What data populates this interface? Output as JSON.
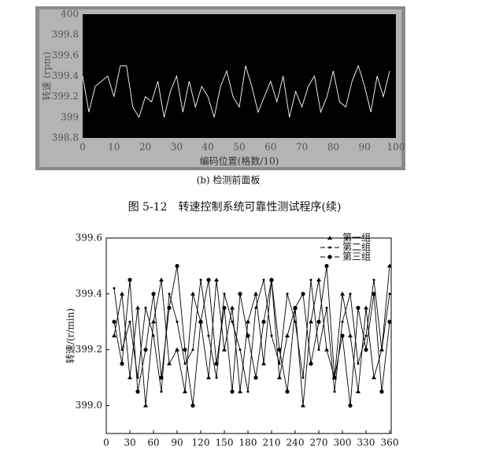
{
  "chart_data": [
    {
      "type": "line",
      "y_label": "转速 (rpm)",
      "x_label": "编码位置(格数/10)",
      "background": "#000000",
      "axis_text_color": "#555555",
      "x": [
        0,
        2,
        4,
        6,
        8,
        10,
        12,
        14,
        16,
        18,
        20,
        22,
        24,
        26,
        28,
        30,
        32,
        34,
        36,
        38,
        40,
        42,
        44,
        46,
        48,
        50,
        52,
        54,
        56,
        58,
        60,
        62,
        64,
        66,
        68,
        70,
        72,
        74,
        76,
        78,
        80,
        82,
        84,
        86,
        88,
        90,
        92,
        94,
        96,
        98
      ],
      "series": [
        {
          "name": null,
          "color": "#ffffff",
          "values": [
            399.4,
            399.05,
            399.3,
            399.35,
            399.4,
            399.2,
            399.5,
            399.5,
            399.1,
            399.0,
            399.2,
            399.15,
            399.35,
            399.0,
            399.25,
            399.4,
            399.05,
            399.35,
            399.1,
            399.3,
            399.2,
            399.0,
            399.3,
            399.45,
            399.2,
            399.1,
            399.5,
            399.3,
            399.05,
            399.2,
            399.35,
            399.15,
            399.4,
            399.0,
            399.25,
            399.1,
            399.3,
            399.4,
            399.05,
            399.2,
            399.45,
            399.15,
            399.1,
            399.35,
            399.5,
            399.3,
            399.05,
            399.4,
            399.2,
            399.45
          ]
        }
      ],
      "xlim": [
        0,
        100
      ],
      "xticks": [
        0,
        10,
        20,
        30,
        40,
        50,
        60,
        70,
        80,
        90,
        100
      ],
      "ylim": [
        398.8,
        400
      ],
      "yticks": [
        398.8,
        399,
        399.2,
        399.4,
        399.6,
        399.8,
        400
      ]
    },
    {
      "type": "line",
      "y_label": "转速/(r/min)",
      "legend": "upper right",
      "background": "#ffffff",
      "axis_text_color": "#111111",
      "x": [
        10,
        20,
        30,
        40,
        50,
        60,
        70,
        80,
        90,
        100,
        110,
        120,
        130,
        140,
        150,
        160,
        170,
        180,
        190,
        200,
        210,
        220,
        230,
        240,
        250,
        260,
        270,
        280,
        290,
        300,
        310,
        320,
        330,
        340,
        350,
        360
      ],
      "series": [
        {
          "name": "第一组",
          "color": "#000000",
          "marker": "triangle",
          "values": [
            399.25,
            399.4,
            399.1,
            399.35,
            399.0,
            399.3,
            399.45,
            399.15,
            399.2,
            399.05,
            399.4,
            399.3,
            399.1,
            399.45,
            399.2,
            399.35,
            399.05,
            399.3,
            399.4,
            399.15,
            399.45,
            399.1,
            399.25,
            399.35,
            399.0,
            399.3,
            399.45,
            399.2,
            399.1,
            399.4,
            399.25,
            399.05,
            399.35,
            399.1,
            399.2,
            399.5
          ]
        },
        {
          "name": "第二组",
          "color": "#000000",
          "marker": "dot",
          "values": [
            399.42,
            399.2,
            399.3,
            399.1,
            399.35,
            399.25,
            399.05,
            399.4,
            399.3,
            399.15,
            399.2,
            399.45,
            399.25,
            399.1,
            399.4,
            399.3,
            399.2,
            399.05,
            399.35,
            399.45,
            399.25,
            399.15,
            399.4,
            399.3,
            399.1,
            399.45,
            399.2,
            399.35,
            399.05,
            399.3,
            399.4,
            399.15,
            399.25,
            399.45,
            399.2,
            399.4
          ]
        },
        {
          "name": "第三组",
          "color": "#000000",
          "marker": "circle",
          "values": [
            399.3,
            399.15,
            399.45,
            399.05,
            399.2,
            399.4,
            399.1,
            399.35,
            399.5,
            399.2,
            399.0,
            399.3,
            399.45,
            399.15,
            399.35,
            399.05,
            399.4,
            399.25,
            399.1,
            399.3,
            399.45,
            399.2,
            399.05,
            399.35,
            399.4,
            399.15,
            399.3,
            399.5,
            399.1,
            399.25,
            399.0,
            399.35,
            399.2,
            399.4,
            399.05,
            399.3
          ]
        }
      ],
      "xlim": [
        0,
        362
      ],
      "xticks": [
        0,
        30,
        60,
        90,
        120,
        150,
        180,
        210,
        240,
        270,
        300,
        330,
        360
      ],
      "ylim": [
        398.9,
        399.6
      ],
      "yticks": [
        {
          "value": 399,
          "label": "399.0"
        },
        399.2,
        399.4,
        399.6
      ]
    }
  ],
  "captions": {
    "panel": "(b) 检测前面板",
    "figure": "图 5-12　转速控制系统可靠性测试程序(续)"
  }
}
